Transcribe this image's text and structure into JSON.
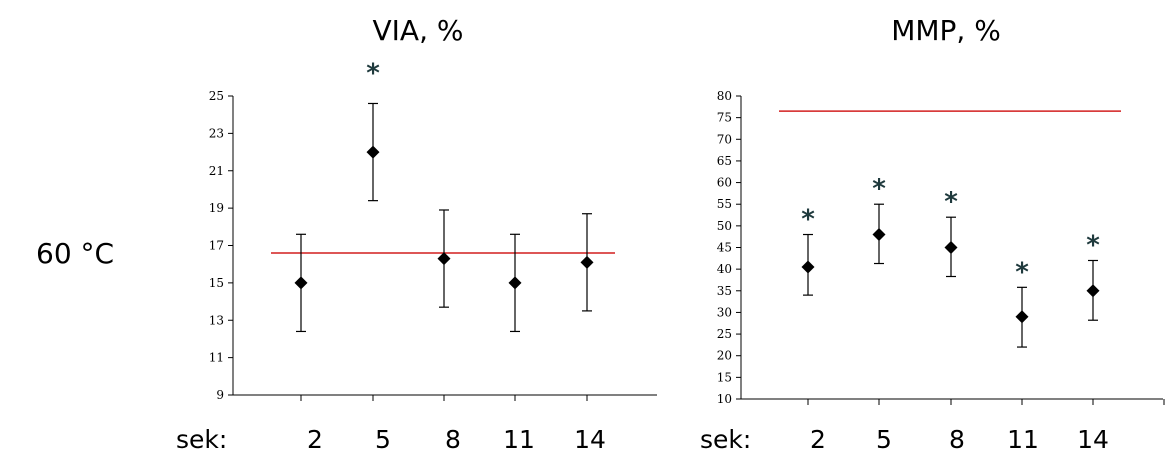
{
  "row_label": "60 °C",
  "chart_data": [
    {
      "type": "scatter",
      "title": "VIA, %",
      "x_prefix": "sek:",
      "categories": [
        "2",
        "5",
        "8",
        "11",
        "14"
      ],
      "values": [
        15,
        22,
        16.3,
        15,
        16.1
      ],
      "error_low": [
        12.4,
        19.4,
        13.7,
        12.4,
        13.5
      ],
      "error_high": [
        17.6,
        24.6,
        18.9,
        17.6,
        18.7
      ],
      "significant": [
        false,
        true,
        false,
        false,
        false
      ],
      "significance_marker": "*",
      "reference_line": 16.6,
      "reference_color": "#d21f1f",
      "ylim": [
        9,
        25
      ],
      "yticks": [
        9,
        11,
        13,
        15,
        17,
        19,
        21,
        23,
        25
      ],
      "grid": false
    },
    {
      "type": "scatter",
      "title": "MMP, %",
      "x_prefix": "sek:",
      "categories": [
        "2",
        "5",
        "8",
        "11",
        "14"
      ],
      "values": [
        40.5,
        48,
        45,
        29,
        35
      ],
      "error_low": [
        34,
        41.3,
        38.3,
        22,
        28.2
      ],
      "error_high": [
        48,
        55,
        52,
        35.8,
        42
      ],
      "significant": [
        true,
        true,
        true,
        true,
        true
      ],
      "significance_marker": "*",
      "reference_line": 76.5,
      "reference_color": "#d21f1f",
      "ylim": [
        10,
        80
      ],
      "yticks": [
        10,
        15,
        20,
        25,
        30,
        35,
        40,
        45,
        50,
        55,
        60,
        65,
        70,
        75,
        80
      ],
      "grid": false
    }
  ]
}
